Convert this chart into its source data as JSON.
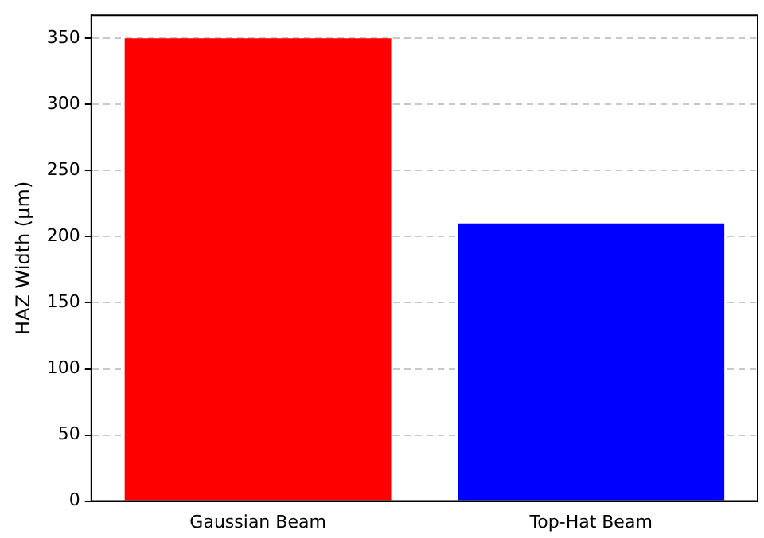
{
  "chart_data": {
    "type": "bar",
    "ylabel": "HAZ Width (μm)",
    "categories": [
      "Gaussian Beam",
      "Top-Hat Beam"
    ],
    "values": [
      350,
      210
    ],
    "colors": [
      "#ff0000",
      "#0000ff"
    ],
    "ylim": [
      0,
      367.5
    ],
    "yticks": [
      0,
      50,
      100,
      150,
      200,
      250,
      300,
      350
    ],
    "grid": "y"
  }
}
